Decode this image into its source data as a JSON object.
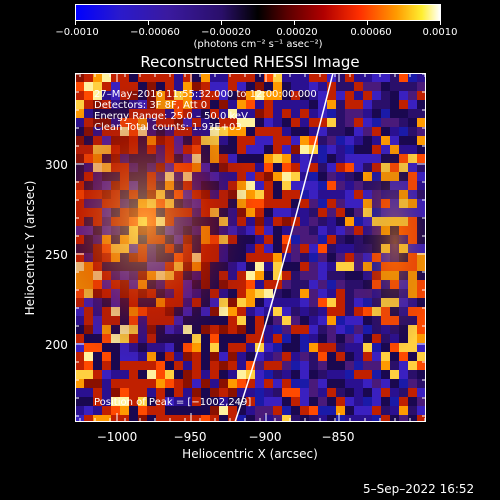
{
  "colorbar": {
    "ticks": [
      "−0.0010",
      "−0.00060",
      "−0.00020",
      "0.00020",
      "0.00060",
      "0.0010"
    ],
    "unit_label": "(photons cm⁻² s⁻¹ asec⁻²)"
  },
  "plot": {
    "title": "Reconstructed RHESSI Image",
    "annotations": [
      "27–May–2016 11:55:32.000 to 12:00:00.000",
      "Detectors: 3F 8F, Att 0",
      "Energy Range: 25.0 – 50.0 keV",
      "Clean    Total counts: 1.93E+03"
    ],
    "peak_label": "Position of Peak = [−1002,249]",
    "xlabel": "Heliocentric X (arcsec)",
    "ylabel": "Heliocentric Y (arcsec)",
    "xticks": [
      "−1000",
      "−950",
      "−900",
      "−850"
    ],
    "yticks": [
      "300",
      "250",
      "200"
    ]
  },
  "timestamp": "5–Sep–2022 16:52"
}
